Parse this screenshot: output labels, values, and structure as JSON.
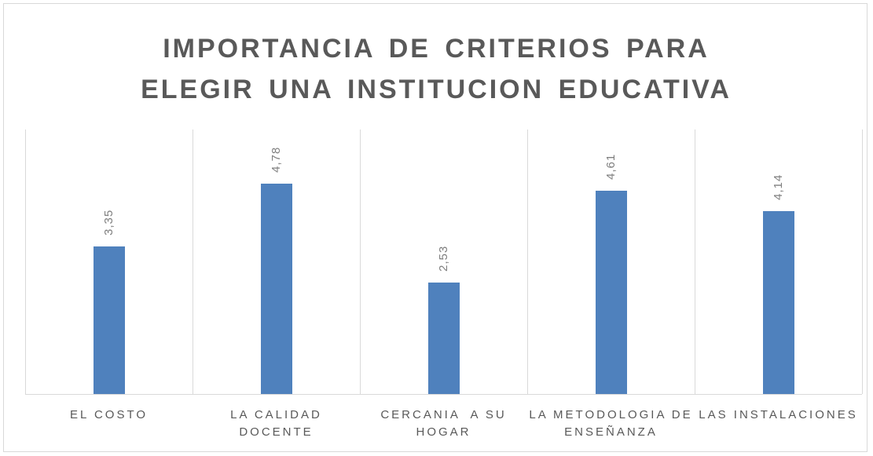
{
  "chart_data": {
    "type": "bar",
    "title": "IMPORTANCIA DE CRITERIOS PARA ELEGIR UNA INSTITUCION EDUCATIVA",
    "categories": [
      "EL COSTO",
      "LA CALIDAD DOCENTE",
      "CERCANIA  A SU HOGAR",
      "LA METODOLOGIA DE ENSEÑANZA",
      "LAS INSTALACIONES"
    ],
    "values": [
      3.35,
      4.78,
      2.53,
      4.61,
      4.14
    ],
    "value_labels": [
      "3,35",
      "4,78",
      "2,53",
      "4,61",
      "4,14"
    ],
    "color": "#4f81bd",
    "ylim": [
      0,
      6
    ]
  }
}
